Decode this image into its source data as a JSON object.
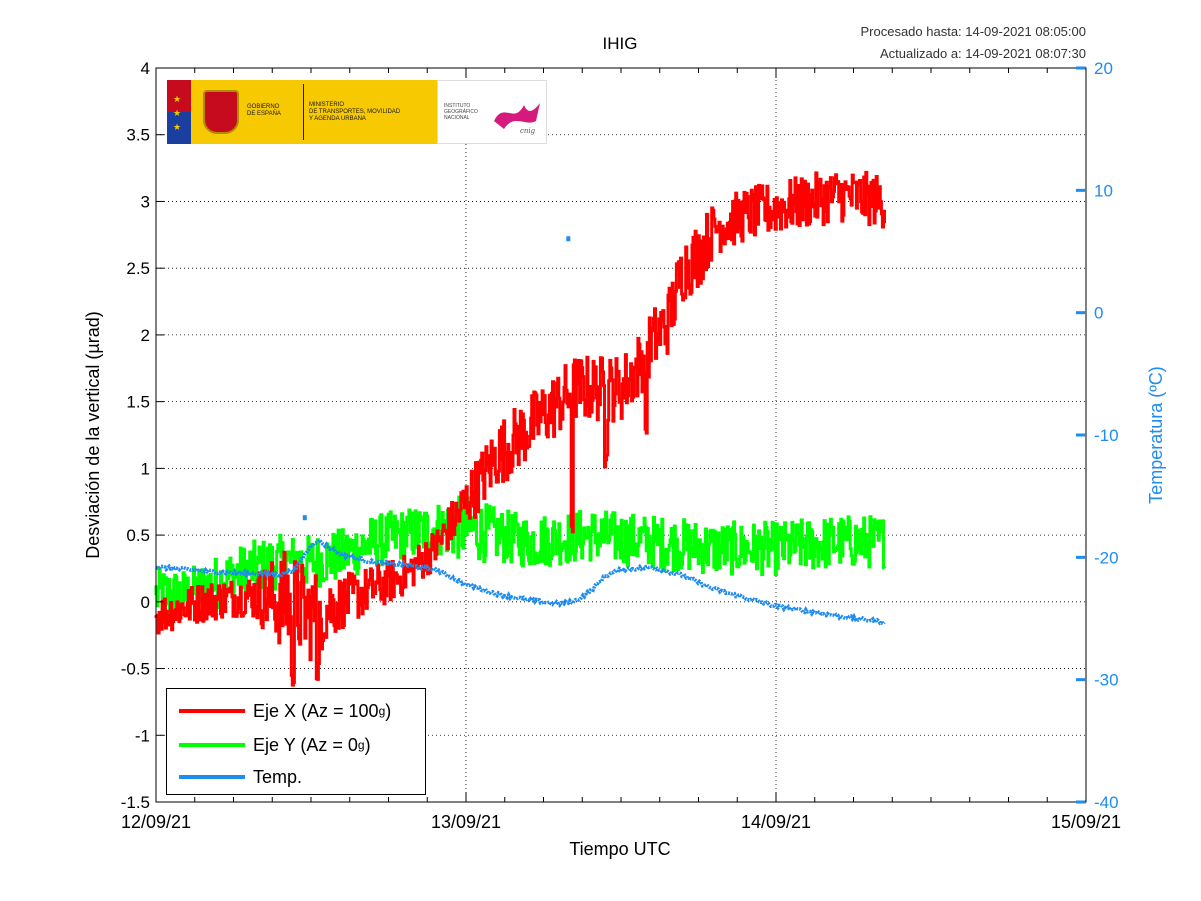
{
  "header": {
    "processed": "Procesado hasta: 14-09-2021 08:05:00",
    "updated": "Actualizado a: 14-09-2021 08:07:30"
  },
  "logo": {
    "gov_line1": "GOBIERNO",
    "gov_line2": "DE ESPAÑA",
    "min_line1": "MINISTERIO",
    "min_line2": "DE TRANSPORTES, MOVILIDAD",
    "min_line3": "Y AGENDA URBANA",
    "ign_line1": "INSTITUTO",
    "ign_line2": "GEOGRÁFICO",
    "ign_line3": "NACIONAL"
  },
  "chart_data": {
    "type": "line",
    "title": "IHIG",
    "xlabel": "Tiempo UTC",
    "ylabel": "Desviación de la vertical (µrad)",
    "y2label": "Temperatura (ºC)",
    "xticks": [
      "12/09/21",
      "13/09/21",
      "14/09/21",
      "15/09/21"
    ],
    "xlim_days": [
      0,
      3
    ],
    "ylim": [
      -1.5,
      4
    ],
    "yticks": [
      -1.5,
      -1,
      -0.5,
      0,
      0.5,
      1,
      1.5,
      2,
      2.5,
      3,
      3.5,
      4
    ],
    "y2lim": [
      -40,
      20
    ],
    "y2ticks": [
      -40,
      -30,
      -20,
      -10,
      0,
      10,
      20
    ],
    "grid": true,
    "legend_position": "bottom-left",
    "series": [
      {
        "name": "Eje X (Az = 100",
        "superscript": "g",
        "name_suffix": ")",
        "color": "#ff0000",
        "axis": "left",
        "x_days": [
          0.0,
          0.15,
          0.3,
          0.42,
          0.5,
          0.6,
          0.8,
          0.9,
          1.0,
          1.1,
          1.15,
          1.3,
          1.35,
          1.45,
          1.5,
          1.55,
          1.6,
          1.65,
          1.7,
          1.75,
          1.8,
          1.9,
          2.0,
          2.1,
          2.2,
          2.35
        ],
        "y": [
          -0.1,
          0.0,
          0.05,
          0.0,
          -0.1,
          0.0,
          0.2,
          0.4,
          0.75,
          1.1,
          1.2,
          1.5,
          1.6,
          1.6,
          1.6,
          1.75,
          1.95,
          2.1,
          2.5,
          2.6,
          2.8,
          2.9,
          2.95,
          3.0,
          3.05,
          3.0
        ],
        "spread": [
          0.15,
          0.15,
          0.15,
          0.4,
          0.35,
          0.2,
          0.15,
          0.15,
          0.2,
          0.25,
          0.25,
          0.25,
          0.25,
          0.25,
          0.25,
          0.25,
          0.25,
          0.25,
          0.25,
          0.25,
          0.2,
          0.2,
          0.2,
          0.2,
          0.2,
          0.2
        ],
        "dips": [
          [
            0.44,
            -0.65
          ],
          [
            0.52,
            -0.6
          ],
          [
            1.34,
            0.5
          ],
          [
            1.45,
            1.0
          ],
          [
            1.58,
            1.2
          ]
        ]
      },
      {
        "name": "Eje Y (Az = 0",
        "superscript": "g",
        "name_suffix": ")",
        "color": "#00ff00",
        "axis": "left",
        "x_days": [
          0.0,
          0.1,
          0.2,
          0.3,
          0.4,
          0.5,
          0.6,
          0.7,
          0.8,
          0.9,
          1.0,
          1.1,
          1.2,
          1.4,
          1.6,
          1.8,
          2.0,
          2.2,
          2.35
        ],
        "y": [
          0.05,
          0.05,
          0.15,
          0.25,
          0.3,
          0.3,
          0.35,
          0.45,
          0.5,
          0.55,
          0.55,
          0.5,
          0.45,
          0.5,
          0.45,
          0.4,
          0.4,
          0.45,
          0.45
        ],
        "spread": [
          0.2,
          0.2,
          0.2,
          0.2,
          0.2,
          0.2,
          0.2,
          0.2,
          0.2,
          0.2,
          0.25,
          0.2,
          0.2,
          0.2,
          0.2,
          0.2,
          0.2,
          0.2,
          0.2
        ]
      },
      {
        "name": "Temp.",
        "color": "#1f8cf0",
        "axis": "right",
        "x_days": [
          0.0,
          0.2,
          0.4,
          0.45,
          0.5,
          0.52,
          0.6,
          0.7,
          0.8,
          0.9,
          1.0,
          1.1,
          1.2,
          1.3,
          1.35,
          1.4,
          1.45,
          1.5,
          1.6,
          1.7,
          1.8,
          2.0,
          2.2,
          2.35
        ],
        "y": [
          -20.8,
          -21.2,
          -21.4,
          -21.0,
          -19.0,
          -18.6,
          -19.8,
          -20.4,
          -20.6,
          -21.0,
          -22.2,
          -23.0,
          -23.5,
          -23.8,
          -23.6,
          -22.8,
          -21.5,
          -21.0,
          -20.8,
          -21.5,
          -22.6,
          -24.0,
          -24.8,
          -25.3
        ],
        "isolated": [
          [
            0.48,
            -16.8
          ],
          [
            1.33,
            6.0
          ]
        ]
      }
    ]
  }
}
